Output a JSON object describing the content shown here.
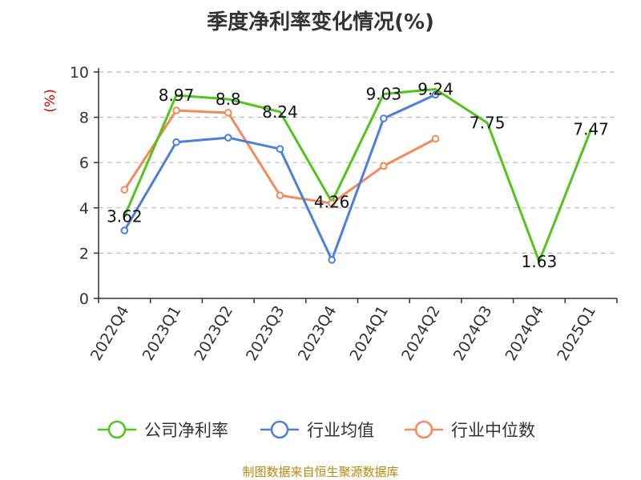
{
  "chart_data": {
    "type": "line",
    "title": "季度净利率变化情况(%)",
    "ylabel": "(%)",
    "ylim": [
      0,
      10
    ],
    "yticks": [
      0,
      2,
      4,
      6,
      8,
      10
    ],
    "grid": "horizontal-dashed",
    "legend_position": "bottom",
    "categories": [
      "2022Q4",
      "2023Q1",
      "2023Q2",
      "2023Q3",
      "2023Q4",
      "2024Q1",
      "2024Q2",
      "2024Q3",
      "2024Q4",
      "2025Q1"
    ],
    "series": [
      {
        "name": "公司净利率",
        "color": "#52c41a",
        "values": [
          3.62,
          8.97,
          8.8,
          8.24,
          4.26,
          9.03,
          9.24,
          7.75,
          1.63,
          7.47
        ],
        "labels": [
          "3.62",
          "8.97",
          "8.8",
          "8.24",
          "4.26",
          "9.03",
          "9.24",
          "7.75",
          "1.63",
          "7.47"
        ]
      },
      {
        "name": "行业均值",
        "color": "#4a7fdb",
        "values": [
          3.0,
          6.9,
          7.1,
          6.6,
          1.7,
          7.95,
          9.0,
          null,
          null,
          null
        ]
      },
      {
        "name": "行业中位数",
        "color": "#f5895a",
        "values": [
          4.8,
          8.3,
          8.2,
          4.55,
          4.2,
          5.85,
          7.05,
          null,
          null,
          null
        ]
      }
    ]
  },
  "source": "制图数据来自恒生聚源数据库"
}
